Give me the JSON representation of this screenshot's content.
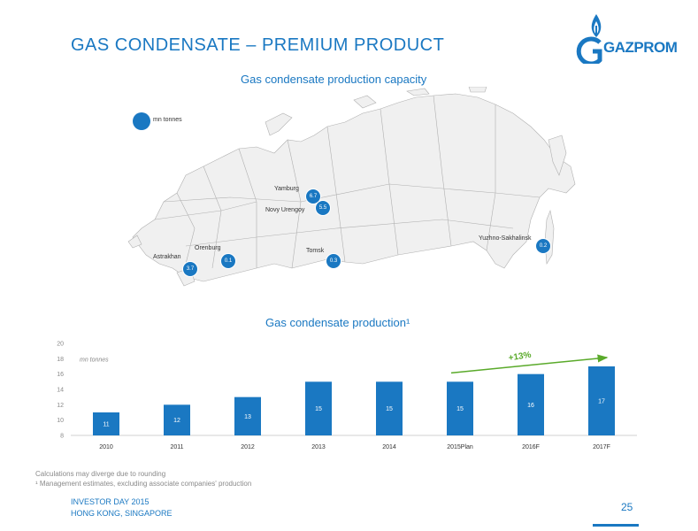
{
  "header": {
    "title": "GAS CONDENSATE – PREMIUM PRODUCT",
    "logo_text": "GAZPROM"
  },
  "map_section": {
    "title": "Gas condensate production capacity",
    "legend_unit": "mn tonnes",
    "cities": [
      {
        "name": "Yamburg"
      },
      {
        "name": "Novy Urengoy"
      },
      {
        "name": "Orenburg"
      },
      {
        "name": "Astrakhan"
      },
      {
        "name": "Tomsk"
      },
      {
        "name": "Yuzhno-Sakhalinsk"
      }
    ],
    "bubbles": [
      {
        "label": "6.7"
      },
      {
        "label": "5.5"
      },
      {
        "label": "0.1"
      },
      {
        "label": "3.7"
      },
      {
        "label": "0.3"
      },
      {
        "label": "0.2"
      }
    ]
  },
  "chart_section": {
    "title": "Gas condensate production¹"
  },
  "chart_data": {
    "type": "bar",
    "title": "Gas condensate production¹",
    "ylabel": "mn tonnes",
    "categories": [
      "2010",
      "2011",
      "2012",
      "2013",
      "2014",
      "2015Plan",
      "2016F",
      "2017F"
    ],
    "values": [
      11,
      12,
      13,
      15,
      15,
      15,
      16,
      17
    ],
    "ylim": [
      8,
      20
    ],
    "yticks": [
      8,
      10,
      12,
      14,
      16,
      18,
      20
    ],
    "annotation": "+13%",
    "bar_color": "#1a78c2",
    "annotation_color": "#5aaa2a"
  },
  "footnotes": {
    "line1": "Calculations may diverge due to rounding",
    "line2": "¹ Management estimates, excluding associate companies' production"
  },
  "footer": {
    "line1": "INVESTOR DAY 2015",
    "line2": "HONG KONG, SINGAPORE",
    "page_number": "25"
  },
  "colors": {
    "brand": "#1a78c2",
    "map_fill": "#f0f0f0",
    "map_stroke": "#b0b0b0",
    "growth": "#5aaa2a"
  }
}
